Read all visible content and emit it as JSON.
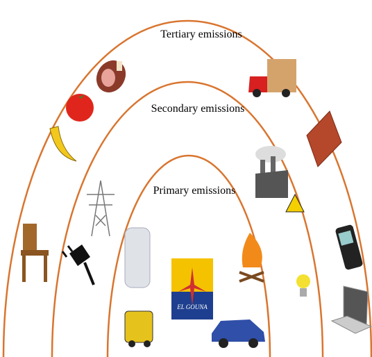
{
  "rings": [
    {
      "label": "Tertiary emissions"
    },
    {
      "label": "Secondary emissions"
    },
    {
      "label": "Primary emissions"
    }
  ],
  "logo": {
    "text": "EL GOUNA"
  }
}
